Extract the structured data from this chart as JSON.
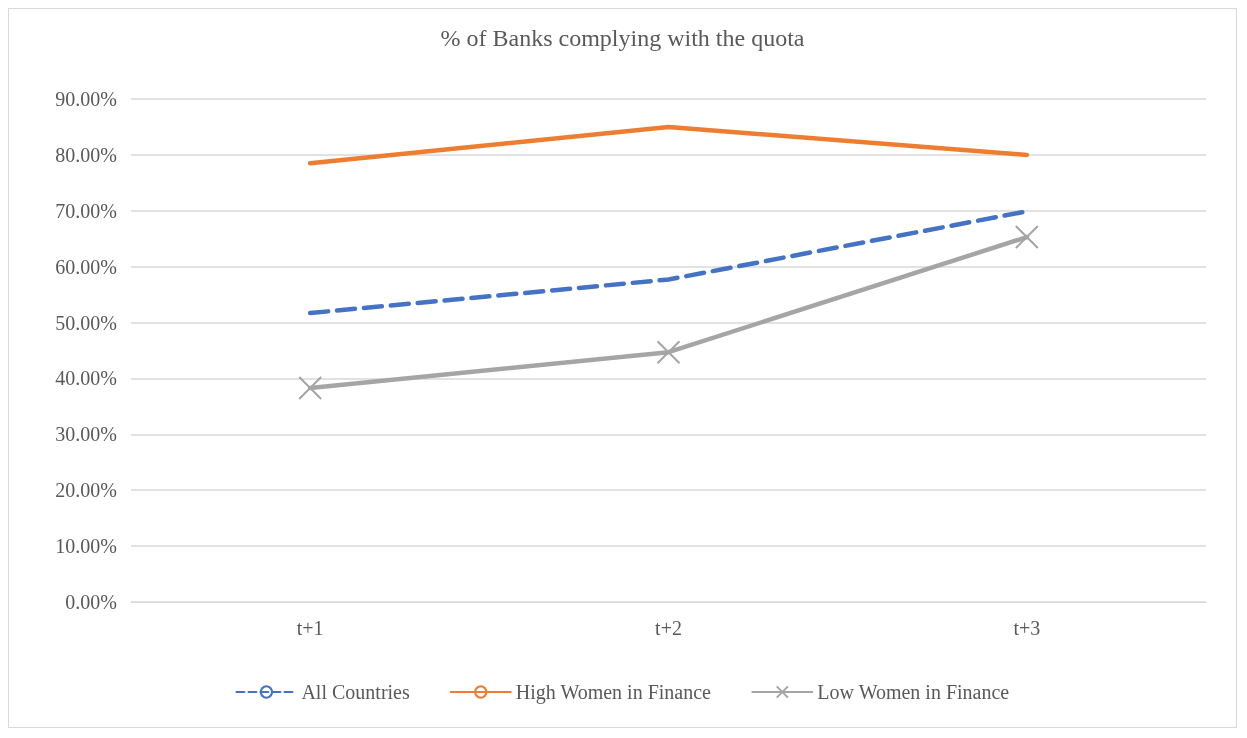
{
  "chart_data": {
    "type": "line",
    "title": "% of Banks complying with the quota",
    "categories": [
      "t+1",
      "t+2",
      "t+3"
    ],
    "series": [
      {
        "name": "All Countries",
        "color": "#4472c4",
        "values": [
          51.7,
          57.7,
          69.9
        ],
        "line_style": "dashed",
        "marker": "none"
      },
      {
        "name": "High Women in Finance",
        "color": "#ed7d31",
        "values": [
          78.5,
          85.0,
          80.0
        ],
        "line_style": "solid",
        "marker": "none"
      },
      {
        "name": "Low Women in Finance",
        "color": "#a5a5a5",
        "values": [
          38.3,
          44.7,
          65.3
        ],
        "line_style": "solid",
        "marker": "cross"
      }
    ],
    "ylim": [
      0,
      90
    ],
    "yticks": [
      {
        "value": 0,
        "label": "0.00%"
      },
      {
        "value": 10,
        "label": "10.00%"
      },
      {
        "value": 20,
        "label": "20.00%"
      },
      {
        "value": 30,
        "label": "30.00%"
      },
      {
        "value": 40,
        "label": "40.00%"
      },
      {
        "value": 50,
        "label": "50.00%"
      },
      {
        "value": 60,
        "label": "60.00%"
      },
      {
        "value": 70,
        "label": "70.00%"
      },
      {
        "value": 80,
        "label": "80.00%"
      },
      {
        "value": 90,
        "label": "90.00%"
      }
    ],
    "grid": "y",
    "legend": "bottom"
  }
}
